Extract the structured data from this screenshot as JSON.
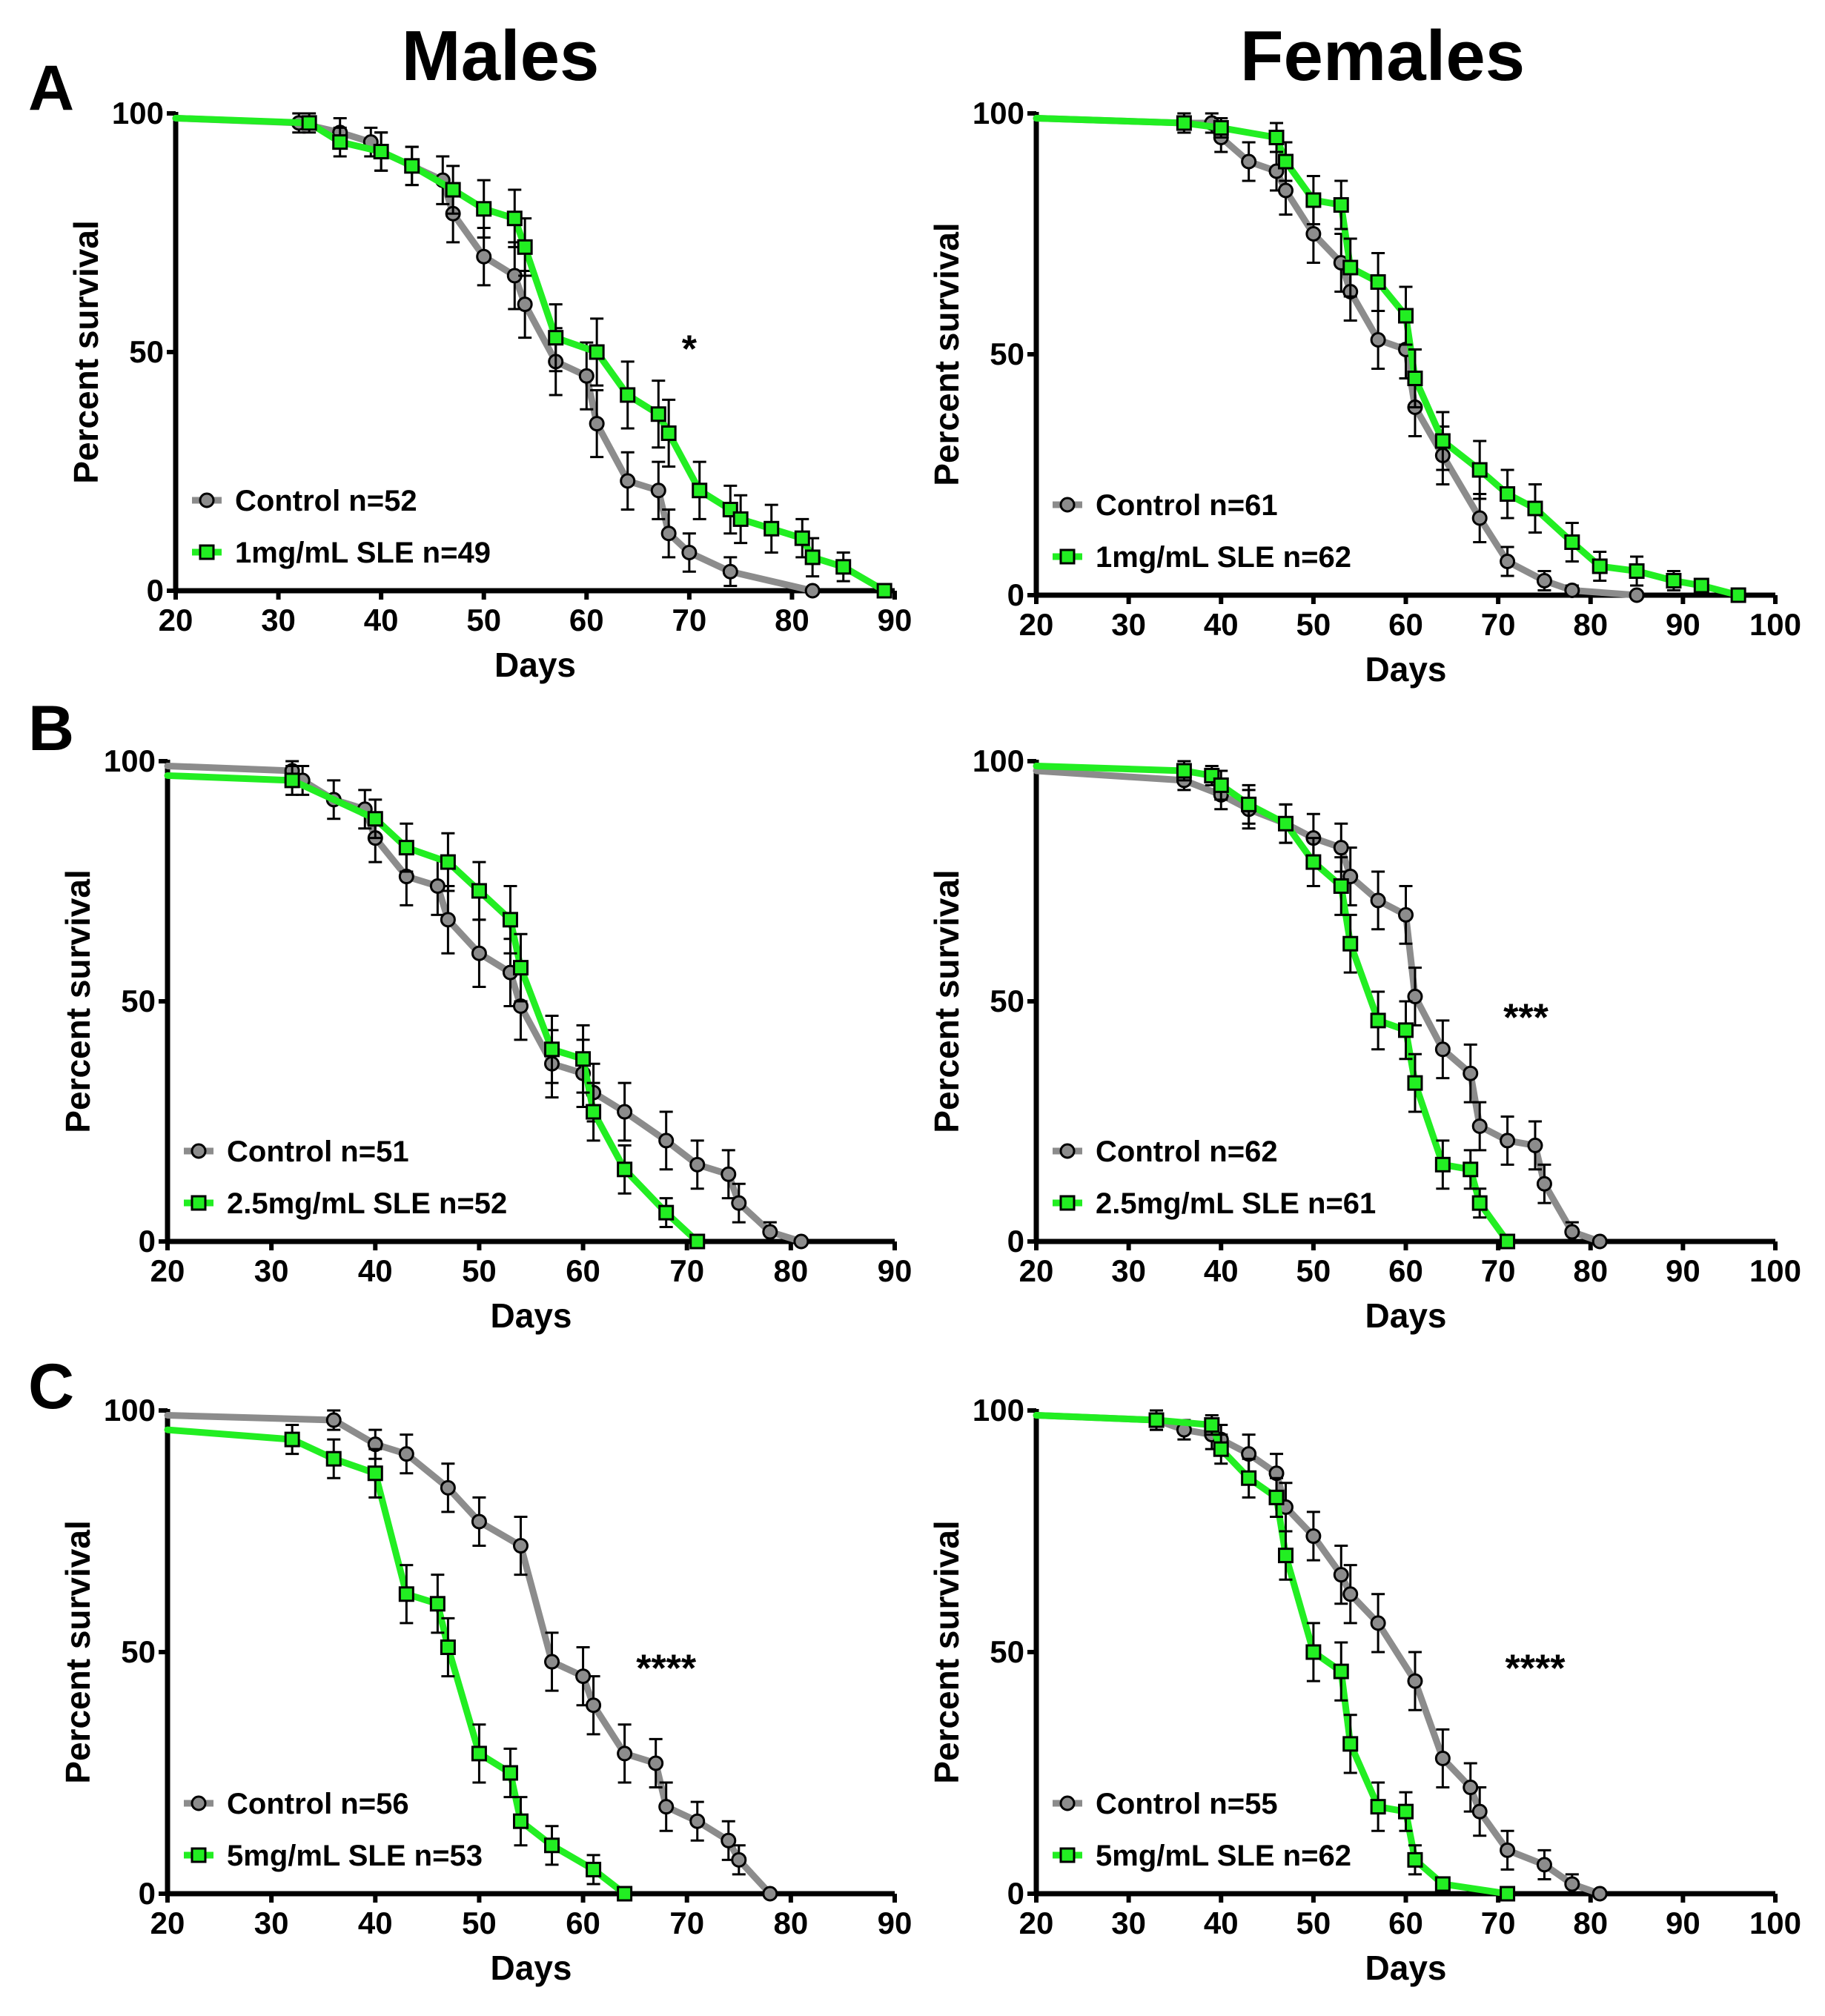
{
  "columns": [
    "Males",
    "Females"
  ],
  "panel_letters": [
    "A",
    "B",
    "C"
  ],
  "colors": {
    "control": "#8c8c8c",
    "treatment": "#22ee22",
    "axis": "#000000",
    "errorbar": "#000000"
  },
  "chart_data": [
    {
      "id": "A-males",
      "type": "line",
      "panel": "A",
      "sex": "Males",
      "xlabel": "Days",
      "ylabel": "Percent survival",
      "xlim": [
        20,
        90
      ],
      "ylim": [
        0,
        100
      ],
      "xticks": [
        20,
        30,
        40,
        50,
        60,
        70,
        80,
        90
      ],
      "yticks": [
        0,
        50,
        100
      ],
      "annotation": {
        "text": "*",
        "x": 70,
        "y": 51
      },
      "legend_position": "bottom-left",
      "series": [
        {
          "name": "Control n=52",
          "marker": "circle",
          "x": [
            20,
            32,
            36,
            39,
            40,
            43,
            46,
            47,
            50,
            53,
            54,
            57,
            60,
            61,
            64,
            67,
            68,
            70,
            74,
            82
          ],
          "y": [
            99,
            98,
            96,
            94,
            92,
            89,
            86,
            79,
            70,
            66,
            60,
            48,
            45,
            35,
            23,
            21,
            12,
            8,
            4,
            0
          ],
          "err": [
            0,
            2,
            3,
            3,
            4,
            4,
            5,
            6,
            6,
            7,
            7,
            7,
            7,
            7,
            6,
            6,
            5,
            4,
            3,
            0
          ]
        },
        {
          "name": "1mg/mL SLE n=49",
          "marker": "square",
          "x": [
            20,
            33,
            36,
            40,
            43,
            47,
            50,
            53,
            54,
            57,
            61,
            64,
            67,
            68,
            71,
            74,
            75,
            78,
            81,
            82,
            85,
            89
          ],
          "y": [
            99,
            98,
            94,
            92,
            89,
            84,
            80,
            78,
            72,
            53,
            50,
            41,
            37,
            33,
            21,
            17,
            15,
            13,
            11,
            7,
            5,
            0
          ],
          "err": [
            0,
            2,
            3,
            4,
            4,
            5,
            6,
            6,
            6,
            7,
            7,
            7,
            7,
            7,
            6,
            5,
            5,
            5,
            4,
            4,
            3,
            0
          ]
        }
      ]
    },
    {
      "id": "A-females",
      "type": "line",
      "panel": "A",
      "sex": "Females",
      "xlabel": "Days",
      "ylabel": "Percent survival",
      "xlim": [
        20,
        100
      ],
      "ylim": [
        0,
        100
      ],
      "xticks": [
        20,
        30,
        40,
        50,
        60,
        70,
        80,
        90,
        100
      ],
      "yticks": [
        0,
        50,
        100
      ],
      "legend_position": "bottom-left",
      "series": [
        {
          "name": "Control n=61",
          "marker": "circle",
          "x": [
            20,
            36,
            39,
            40,
            43,
            46,
            47,
            50,
            53,
            54,
            57,
            60,
            61,
            64,
            68,
            71,
            75,
            78,
            85
          ],
          "y": [
            99,
            98,
            98,
            95,
            90,
            88,
            84,
            75,
            69,
            63,
            53,
            51,
            39,
            29,
            16,
            7,
            3,
            1,
            0
          ],
          "err": [
            0,
            2,
            2,
            3,
            4,
            4,
            5,
            6,
            6,
            6,
            6,
            6,
            6,
            6,
            5,
            3,
            2,
            1,
            0
          ]
        },
        {
          "name": "1mg/mL SLE n=62",
          "marker": "square",
          "x": [
            20,
            36,
            40,
            46,
            47,
            50,
            53,
            54,
            57,
            60,
            61,
            64,
            68,
            71,
            74,
            78,
            81,
            85,
            89,
            92,
            96
          ],
          "y": [
            99,
            98,
            97,
            95,
            90,
            82,
            81,
            68,
            65,
            58,
            45,
            32,
            26,
            21,
            18,
            11,
            6,
            5,
            3,
            2,
            0
          ],
          "err": [
            0,
            2,
            2,
            3,
            4,
            5,
            5,
            6,
            6,
            6,
            6,
            6,
            6,
            5,
            5,
            4,
            3,
            3,
            2,
            1,
            0
          ]
        }
      ]
    },
    {
      "id": "B-males",
      "type": "line",
      "panel": "B",
      "sex": "Males",
      "xlabel": "Days",
      "ylabel": "Percent survival",
      "xlim": [
        20,
        90
      ],
      "ylim": [
        0,
        100
      ],
      "xticks": [
        20,
        30,
        40,
        50,
        60,
        70,
        80,
        90
      ],
      "yticks": [
        0,
        50,
        100
      ],
      "legend_position": "bottom-left",
      "series": [
        {
          "name": "Control n=51",
          "marker": "circle",
          "x": [
            20,
            32,
            33,
            36,
            39,
            40,
            43,
            46,
            47,
            50,
            53,
            54,
            57,
            60,
            61,
            64,
            68,
            71,
            74,
            75,
            78,
            81
          ],
          "y": [
            99,
            98,
            96,
            92,
            90,
            84,
            76,
            74,
            67,
            60,
            56,
            49,
            37,
            35,
            31,
            27,
            21,
            16,
            14,
            8,
            2,
            0
          ],
          "err": [
            0,
            2,
            3,
            4,
            4,
            5,
            6,
            6,
            7,
            7,
            7,
            7,
            7,
            7,
            6,
            6,
            6,
            5,
            5,
            4,
            2,
            0
          ]
        },
        {
          "name": "2.5mg/mL SLE n=52",
          "marker": "square",
          "x": [
            20,
            32,
            40,
            43,
            47,
            50,
            53,
            54,
            57,
            60,
            61,
            64,
            68,
            71
          ],
          "y": [
            97,
            96,
            88,
            82,
            79,
            73,
            67,
            57,
            40,
            38,
            27,
            15,
            6,
            0
          ],
          "err": [
            0,
            3,
            4,
            5,
            6,
            6,
            7,
            7,
            7,
            7,
            6,
            5,
            3,
            0
          ]
        }
      ]
    },
    {
      "id": "B-females",
      "type": "line",
      "panel": "B",
      "sex": "Females",
      "xlabel": "Days",
      "ylabel": "Percent survival",
      "xlim": [
        20,
        100
      ],
      "ylim": [
        0,
        100
      ],
      "xticks": [
        20,
        30,
        40,
        50,
        60,
        70,
        80,
        90,
        100
      ],
      "yticks": [
        0,
        50,
        100
      ],
      "annotation": {
        "text": "***",
        "x": 73,
        "y": 47
      },
      "legend_position": "bottom-left",
      "series": [
        {
          "name": "Control n=62",
          "marker": "circle",
          "x": [
            20,
            36,
            40,
            43,
            47,
            50,
            53,
            54,
            57,
            60,
            61,
            64,
            67,
            68,
            71,
            74,
            75,
            78,
            81
          ],
          "y": [
            98,
            96,
            93,
            90,
            87,
            84,
            82,
            76,
            71,
            68,
            51,
            40,
            35,
            24,
            21,
            20,
            12,
            2,
            0
          ],
          "err": [
            0,
            2,
            3,
            4,
            4,
            5,
            5,
            6,
            6,
            6,
            6,
            6,
            6,
            5,
            5,
            5,
            4,
            2,
            0
          ]
        },
        {
          "name": "2.5mg/mL SLE n=61",
          "marker": "square",
          "x": [
            20,
            36,
            39,
            40,
            43,
            47,
            50,
            53,
            54,
            57,
            60,
            61,
            64,
            67,
            68,
            71
          ],
          "y": [
            99,
            98,
            97,
            95,
            91,
            87,
            79,
            74,
            62,
            46,
            44,
            33,
            16,
            15,
            8,
            0
          ],
          "err": [
            0,
            2,
            2,
            3,
            4,
            4,
            5,
            6,
            6,
            6,
            6,
            6,
            5,
            4,
            3,
            0
          ]
        }
      ]
    },
    {
      "id": "C-males",
      "type": "line",
      "panel": "C",
      "sex": "Males",
      "xlabel": "Days",
      "ylabel": "Percent survival",
      "xlim": [
        20,
        90
      ],
      "ylim": [
        0,
        100
      ],
      "xticks": [
        20,
        30,
        40,
        50,
        60,
        70,
        80,
        90
      ],
      "yticks": [
        0,
        50,
        100
      ],
      "annotation": {
        "text": "****",
        "x": 68,
        "y": 47
      },
      "legend_position": "bottom-left",
      "series": [
        {
          "name": "Control n=56",
          "marker": "circle",
          "x": [
            20,
            36,
            40,
            43,
            47,
            50,
            54,
            57,
            60,
            61,
            64,
            67,
            68,
            71,
            74,
            75,
            78
          ],
          "y": [
            99,
            98,
            93,
            91,
            84,
            77,
            72,
            48,
            45,
            39,
            29,
            27,
            18,
            15,
            11,
            7,
            0
          ],
          "err": [
            0,
            2,
            3,
            4,
            5,
            5,
            6,
            6,
            6,
            6,
            6,
            5,
            5,
            4,
            4,
            3,
            0
          ]
        },
        {
          "name": "5mg/mL SLE n=53",
          "marker": "square",
          "x": [
            20,
            32,
            36,
            40,
            43,
            46,
            47,
            50,
            53,
            54,
            57,
            61,
            64
          ],
          "y": [
            96,
            94,
            90,
            87,
            62,
            60,
            51,
            29,
            25,
            15,
            10,
            5,
            0
          ],
          "err": [
            0,
            3,
            4,
            5,
            6,
            6,
            6,
            6,
            5,
            5,
            4,
            3,
            0
          ]
        }
      ]
    },
    {
      "id": "C-females",
      "type": "line",
      "panel": "C",
      "sex": "Females",
      "xlabel": "Days",
      "ylabel": "Percent survival",
      "xlim": [
        20,
        100
      ],
      "ylim": [
        0,
        100
      ],
      "xticks": [
        20,
        30,
        40,
        50,
        60,
        70,
        80,
        90,
        100
      ],
      "yticks": [
        0,
        50,
        100
      ],
      "annotation": {
        "text": "****",
        "x": 74,
        "y": 47
      },
      "legend_position": "bottom-left",
      "series": [
        {
          "name": "Control n=55",
          "marker": "circle",
          "x": [
            20,
            33,
            36,
            39,
            40,
            43,
            46,
            47,
            50,
            53,
            54,
            57,
            61,
            64,
            67,
            68,
            71,
            75,
            78,
            81
          ],
          "y": [
            99,
            98,
            96,
            95,
            94,
            91,
            87,
            80,
            74,
            66,
            62,
            56,
            44,
            28,
            22,
            17,
            9,
            6,
            2,
            0
          ],
          "err": [
            0,
            2,
            2,
            3,
            3,
            4,
            4,
            5,
            5,
            6,
            6,
            6,
            6,
            6,
            5,
            5,
            4,
            3,
            2,
            0
          ]
        },
        {
          "name": "5mg/mL SLE n=62",
          "marker": "square",
          "x": [
            20,
            33,
            39,
            40,
            43,
            46,
            47,
            50,
            53,
            54,
            57,
            60,
            61,
            64,
            71
          ],
          "y": [
            99,
            98,
            97,
            92,
            86,
            82,
            70,
            50,
            46,
            31,
            18,
            17,
            7,
            2,
            0
          ],
          "err": [
            0,
            2,
            2,
            3,
            4,
            4,
            5,
            6,
            6,
            6,
            5,
            4,
            3,
            1,
            0
          ]
        }
      ]
    }
  ]
}
